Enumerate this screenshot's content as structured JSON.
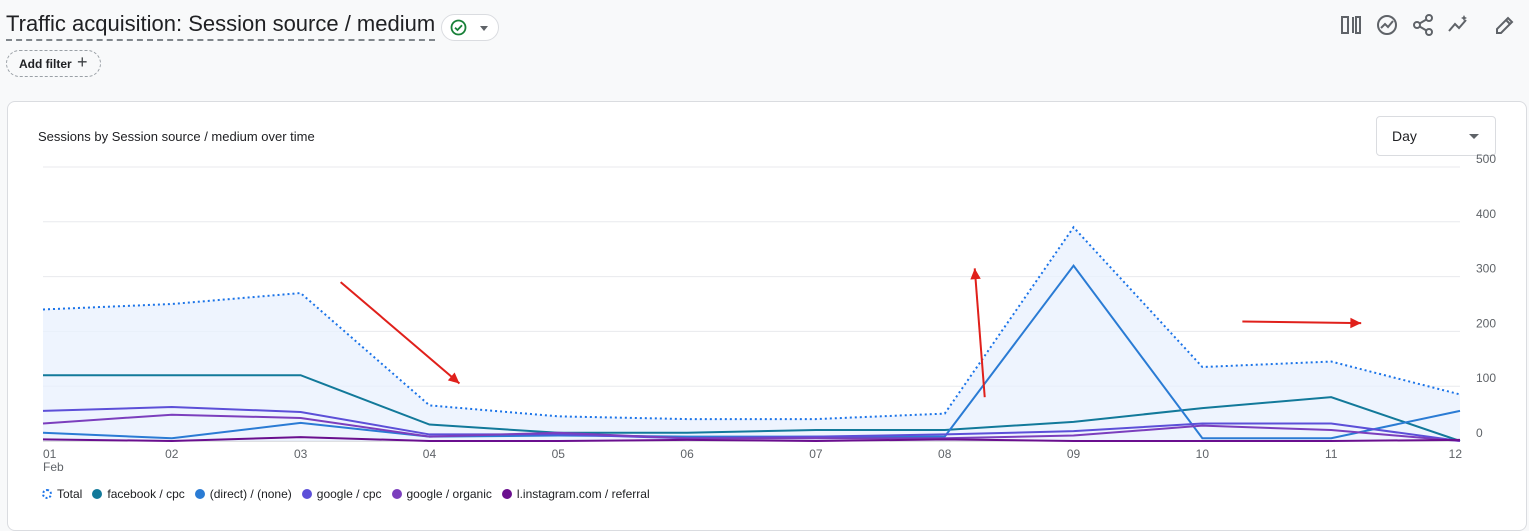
{
  "header": {
    "title": "Traffic acquisition: Session source / medium",
    "add_filter_label": "Add filter",
    "status_icon": "check-circle-icon",
    "toolbar_icons": [
      "compare-icon",
      "insights-icon",
      "share-icon",
      "trend-icon",
      "edit-icon"
    ]
  },
  "card": {
    "title": "Sessions by Session source / medium over time",
    "granularity": "Day"
  },
  "colors": {
    "Total": "#1a73e8",
    "facebook / cpc": "#12799a",
    "(direct) / (none)": "#2a7bd4",
    "google / cpc": "#5c4fd8",
    "google / organic": "#7b3ebd",
    "l.instagram.com / referral": "#6a0f8e",
    "annotation": "#e0201b"
  },
  "chart_data": {
    "type": "line",
    "x": [
      "01",
      "02",
      "03",
      "04",
      "05",
      "06",
      "07",
      "08",
      "09",
      "10",
      "11",
      "12"
    ],
    "x_sublabel": "Feb",
    "y_ticks": [
      0,
      100,
      200,
      300,
      400,
      500
    ],
    "ylim": [
      0,
      500
    ],
    "y_axis_side": "right",
    "grid": true,
    "legend_position": "bottom-left",
    "series": [
      {
        "name": "Total",
        "style": "dotted",
        "values": [
          240,
          250,
          270,
          65,
          45,
          40,
          40,
          50,
          390,
          135,
          145,
          85
        ]
      },
      {
        "name": "facebook / cpc",
        "values": [
          120,
          120,
          120,
          30,
          15,
          15,
          20,
          20,
          35,
          60,
          80,
          0
        ]
      },
      {
        "name": "(direct) / (none)",
        "values": [
          15,
          5,
          33,
          8,
          10,
          8,
          8,
          8,
          320,
          5,
          5,
          55
        ]
      },
      {
        "name": "google / cpc",
        "values": [
          55,
          62,
          53,
          12,
          12,
          5,
          8,
          12,
          18,
          32,
          32,
          0
        ]
      },
      {
        "name": "google / organic",
        "values": [
          32,
          48,
          42,
          8,
          15,
          5,
          5,
          5,
          10,
          28,
          20,
          0
        ]
      },
      {
        "name": "l.instagram.com / referral",
        "values": [
          3,
          0,
          7,
          0,
          0,
          2,
          0,
          3,
          0,
          0,
          0,
          2
        ]
      }
    ],
    "annotations": [
      {
        "shape": "arrow",
        "from": [
          "03",
          290
        ],
        "to": [
          "04",
          105
        ]
      },
      {
        "shape": "arrow",
        "from": [
          "08",
          80
        ],
        "to": [
          "08",
          315
        ]
      },
      {
        "shape": "arrow",
        "from": [
          "10",
          218
        ],
        "to": [
          "11",
          215
        ]
      }
    ]
  }
}
